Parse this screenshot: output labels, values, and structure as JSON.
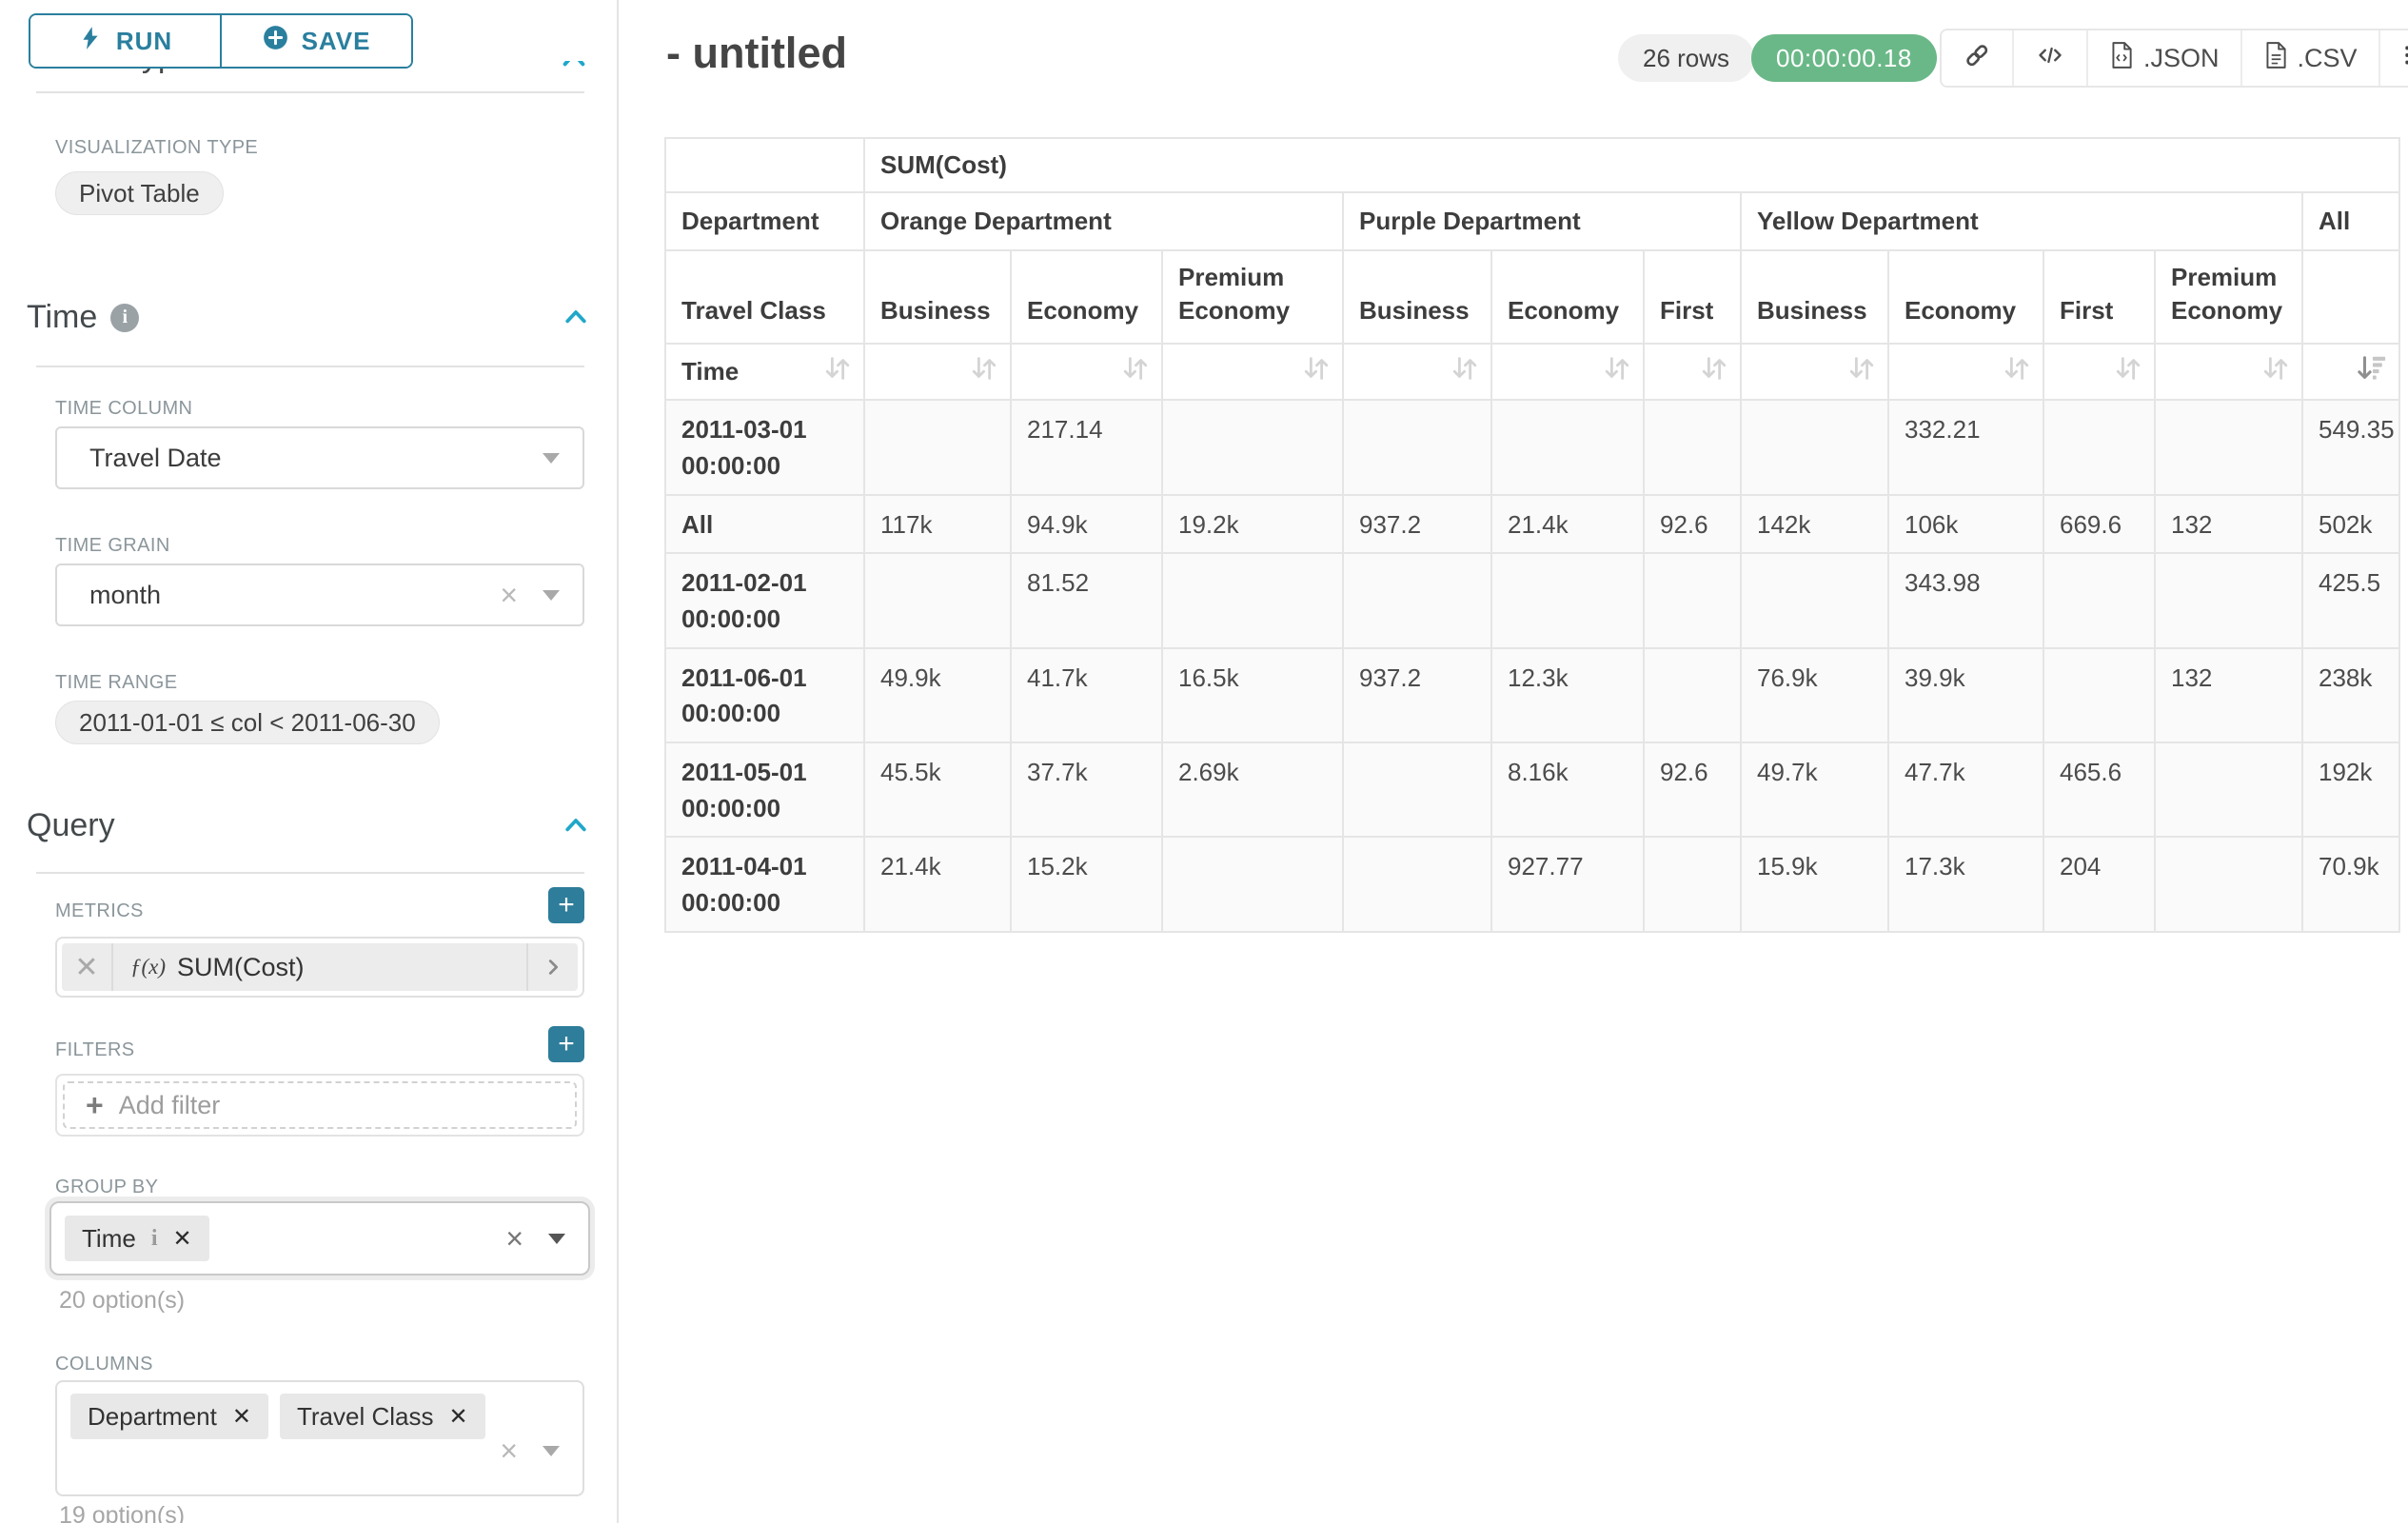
{
  "colors": {
    "accent_teal": "#2a7f9e",
    "chevron_blue": "#20a7c9",
    "timer_green": "#6ab887",
    "badge_gray": "#f0f0f0"
  },
  "icons": {
    "run": "lightning-bolt-icon",
    "save": "plus-circle-icon",
    "section_collapse": "chevron-up-icon",
    "info": "info-circle-icon",
    "select_caret": "caret-down-icon",
    "select_clear": "x-clear-icon",
    "metric_fx": "function-icon",
    "metric_expand": "chevron-right-icon",
    "add": "plus-icon",
    "permalink": "link-icon",
    "embed_code": "code-icon",
    "export_json": "file-code-icon",
    "export_csv": "file-lines-icon",
    "menu": "hamburger-icon",
    "sort_inactive": "sort-up-down-icon",
    "sort_active": "sort-descending-bars-icon"
  },
  "sidebar": {
    "run_label": "RUN",
    "save_label": "SAVE",
    "chart_type_heading": "Chart Type",
    "visualization_type_label": "VISUALIZATION TYPE",
    "visualization_type_value": "Pivot Table",
    "time": {
      "title": "Time",
      "time_column_label": "TIME COLUMN",
      "time_column_value": "Travel Date",
      "time_grain_label": "TIME GRAIN",
      "time_grain_value": "month",
      "time_range_label": "TIME RANGE",
      "time_range_value": "2011-01-01 ≤ col < 2011-06-30"
    },
    "query": {
      "title": "Query",
      "metrics_label": "METRICS",
      "metric_fx": "ƒ(x)",
      "metric_value": "SUM(Cost)",
      "filters_label": "FILTERS",
      "add_filter_label": "Add filter",
      "group_by_label": "GROUP BY",
      "group_by_tags": [
        "Time"
      ],
      "group_by_options_hint": "20 option(s)",
      "columns_label": "COLUMNS",
      "columns_tags": [
        "Department",
        "Travel Class"
      ],
      "columns_options_hint": "19 option(s)"
    }
  },
  "header": {
    "title": "- untitled",
    "row_count_badge": "26 rows",
    "query_timer": "00:00:00.18",
    "export_json_label": ".JSON",
    "export_csv_label": ".CSV"
  },
  "table": {
    "metric_header": "SUM(Cost)",
    "corner_row2": "Department",
    "corner_row3": "Travel Class",
    "corner_row4": "Time",
    "column_groups": [
      {
        "label": "Orange Department",
        "classes": [
          "Business",
          "Economy",
          "Premium Economy"
        ]
      },
      {
        "label": "Purple Department",
        "classes": [
          "Business",
          "Economy",
          "First"
        ]
      },
      {
        "label": "Yellow Department",
        "classes": [
          "Business",
          "Economy",
          "First",
          "Premium Economy"
        ]
      },
      {
        "label": "All",
        "classes": [
          ""
        ]
      }
    ],
    "sorted_column_index": 10,
    "rows": [
      {
        "label": "2011-03-01 00:00:00",
        "values": [
          "",
          "217.14",
          "",
          "",
          "",
          "",
          "",
          "332.21",
          "",
          "",
          "549.35"
        ]
      },
      {
        "label": "All",
        "values": [
          "117k",
          "94.9k",
          "19.2k",
          "937.2",
          "21.4k",
          "92.6",
          "142k",
          "106k",
          "669.6",
          "132",
          "502k"
        ]
      },
      {
        "label": "2011-02-01 00:00:00",
        "values": [
          "",
          "81.52",
          "",
          "",
          "",
          "",
          "",
          "343.98",
          "",
          "",
          "425.5"
        ]
      },
      {
        "label": "2011-06-01 00:00:00",
        "values": [
          "49.9k",
          "41.7k",
          "16.5k",
          "937.2",
          "12.3k",
          "",
          "76.9k",
          "39.9k",
          "",
          "132",
          "238k"
        ]
      },
      {
        "label": "2011-05-01 00:00:00",
        "values": [
          "45.5k",
          "37.7k",
          "2.69k",
          "",
          "8.16k",
          "92.6",
          "49.7k",
          "47.7k",
          "465.6",
          "",
          "192k"
        ]
      },
      {
        "label": "2011-04-01 00:00:00",
        "values": [
          "21.4k",
          "15.2k",
          "",
          "",
          "927.77",
          "",
          "15.9k",
          "17.3k",
          "204",
          "",
          "70.9k"
        ]
      }
    ]
  }
}
